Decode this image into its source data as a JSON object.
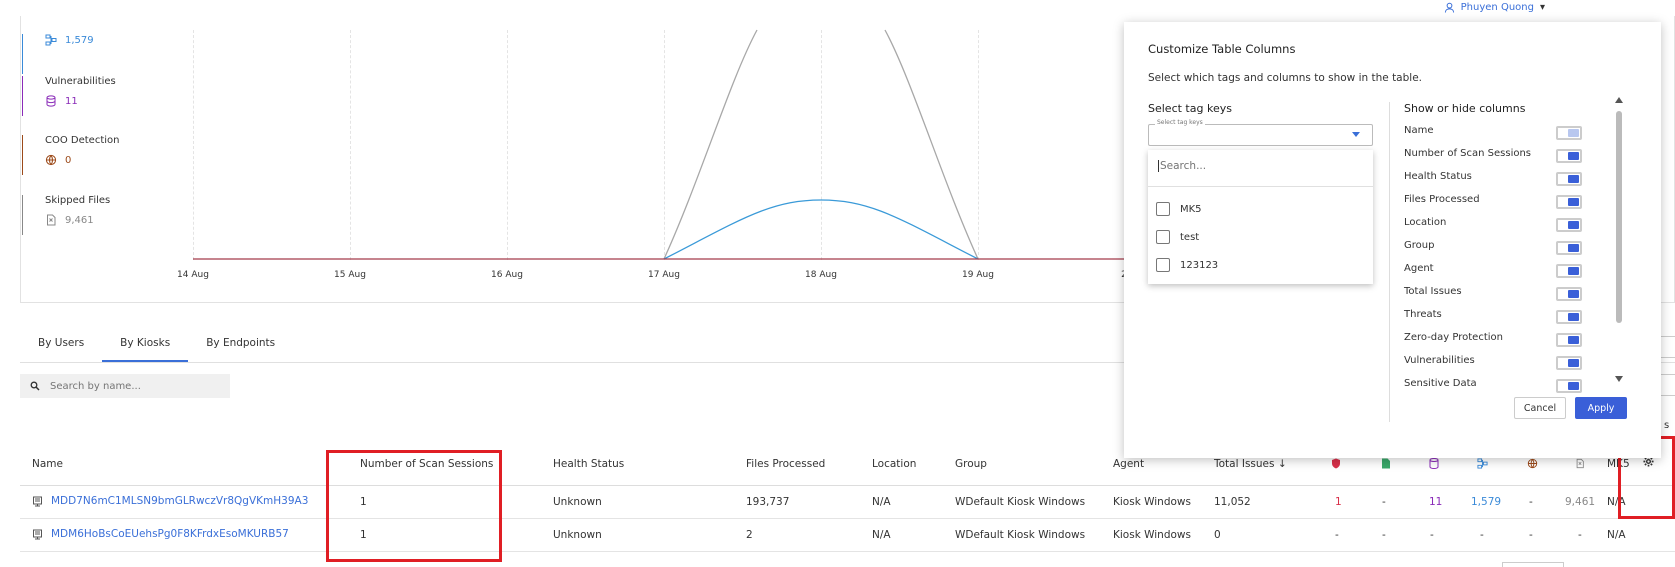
{
  "user": {
    "name": "Phuyen Quong",
    "icon": "user-icon"
  },
  "stats": [
    {
      "label": "",
      "value": "1,579",
      "icon": "network-icon",
      "color": "#3a8ad8"
    },
    {
      "label": "Vulnerabilities",
      "value": "11",
      "icon": "database-icon",
      "color": "#8a2bb8"
    },
    {
      "label": "COO Detection",
      "value": "0",
      "icon": "globe-icon",
      "color": "#9c4a1a"
    },
    {
      "label": "Skipped Files",
      "value": "9,461",
      "icon": "file-icon",
      "color": "#888888"
    }
  ],
  "chart_data": {
    "type": "line",
    "x": [
      "14 Aug",
      "15 Aug",
      "16 Aug",
      "17 Aug",
      "18 Aug",
      "19 Aug",
      "2"
    ],
    "series": [
      {
        "color": "#999999",
        "values": [
          0,
          0,
          0,
          0,
          null,
          0,
          0
        ]
      },
      {
        "color": "#3a9ad8",
        "values": [
          0,
          0,
          0,
          0,
          1,
          0,
          0
        ]
      },
      {
        "color": "#b03a4a",
        "values": [
          0,
          0,
          0,
          0,
          0,
          0,
          0
        ]
      }
    ],
    "grid": true
  },
  "tabs": [
    "By Users",
    "By Kiosks",
    "By Endpoints"
  ],
  "active_tab": "By Kiosks",
  "search": {
    "placeholder": "Search by name..."
  },
  "table": {
    "headers": {
      "name": "Name",
      "sessions": "Number of Scan Sessions",
      "health": "Health Status",
      "files": "Files Processed",
      "location": "Location",
      "group": "Group",
      "agent": "Agent",
      "issues": "Total Issues",
      "mk5": "MK5"
    },
    "rows": [
      {
        "name": "MDD7N6mC1MLSN9bmGLRwczVr8QgVKmH39A3",
        "sessions": "1",
        "health": "Unknown",
        "files": "193,737",
        "location": "N/A",
        "group": "WDefault Kiosk Windows",
        "agent": "Kiosk Windows",
        "issues": "11,052",
        "threats": "1",
        "zeroday": "-",
        "vulns": "11",
        "network": "1,579",
        "coo": "-",
        "skipped": "9,461",
        "mk5": "N/A"
      },
      {
        "name": "MDM6HoBsCoEUehsPg0F8KFrdxEsoMKURB57",
        "sessions": "1",
        "health": "Unknown",
        "files": "2",
        "location": "N/A",
        "group": "WDefault Kiosk Windows",
        "agent": "Kiosk Windows",
        "issues": "0",
        "threats": "-",
        "zeroday": "-",
        "vulns": "-",
        "network": "-",
        "coo": "-",
        "skipped": "-",
        "mk5": "N/A"
      }
    ]
  },
  "modal": {
    "title": "Customize Table Columns",
    "description": "Select which tags and columns to show in the table.",
    "tag_section": "Select tag keys",
    "tag_select_mini_label": "Select tag keys",
    "tag_search_placeholder": "Search...",
    "tag_options": [
      "MK5",
      "test",
      "123123"
    ],
    "columns_section": "Show or hide columns",
    "columns": [
      {
        "label": "Name",
        "on": true,
        "disabled": true
      },
      {
        "label": "Number of Scan Sessions",
        "on": true
      },
      {
        "label": "Health Status",
        "on": true
      },
      {
        "label": "Files Processed",
        "on": true
      },
      {
        "label": "Location",
        "on": true
      },
      {
        "label": "Group",
        "on": true
      },
      {
        "label": "Agent",
        "on": true
      },
      {
        "label": "Total Issues",
        "on": true
      },
      {
        "label": "Threats",
        "on": true
      },
      {
        "label": "Zero-day Protection",
        "on": true
      },
      {
        "label": "Vulnerabilities",
        "on": true
      },
      {
        "label": "Sensitive Data",
        "on": true
      }
    ],
    "cancel": "Cancel",
    "apply": "Apply"
  },
  "edge_text": "s"
}
